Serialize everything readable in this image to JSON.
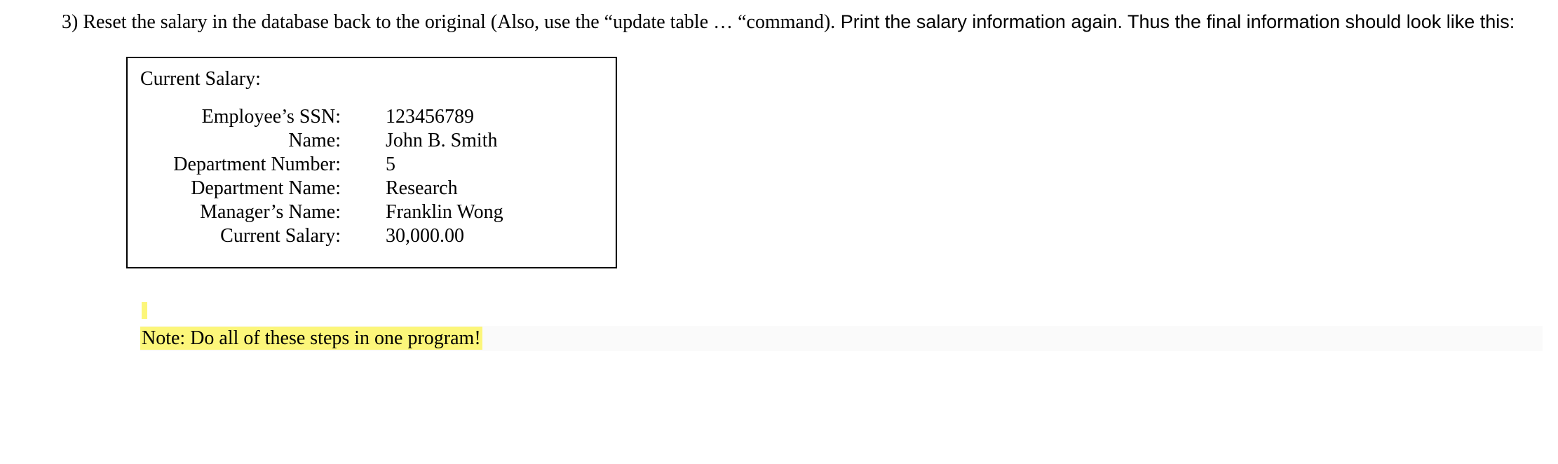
{
  "instruction": {
    "bullet": "3)",
    "serif_part": "Reset the salary in the database back to the original (Also, use the “update table … “command).",
    "sans_part": "  Print the salary information again.  Thus the final information should look like this:"
  },
  "box": {
    "header": "Current Salary:",
    "rows": [
      {
        "label": "Employee’s SSN:",
        "value": "123456789"
      },
      {
        "label": "Name:",
        "value": "John B.  Smith"
      },
      {
        "label": "Department Number:",
        "value": "5"
      },
      {
        "label": "Department Name:",
        "value": "Research"
      },
      {
        "label": "Manager’s Name:",
        "value": "Franklin Wong"
      },
      {
        "label": "Current Salary:",
        "value": "30,000.00"
      }
    ]
  },
  "note": "Note:  Do all of these steps in one program!",
  "colors": {
    "highlight": "#fcf67a",
    "border": "#000000",
    "bg": "#ffffff",
    "note_bg": "#fafafa"
  }
}
